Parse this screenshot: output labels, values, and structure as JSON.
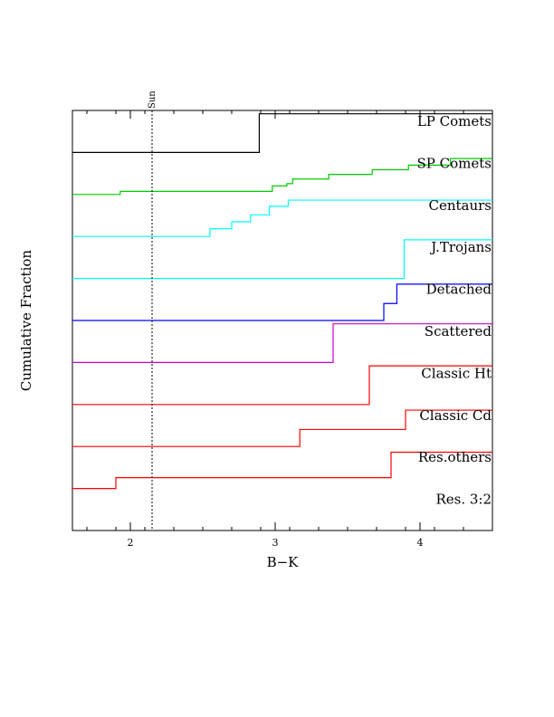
{
  "chart_data": {
    "type": "line",
    "subtype": "stacked-cumulative-step",
    "xlabel": "B−K",
    "ylabel": "Cumulative Fraction",
    "xlim": [
      1.6,
      4.5
    ],
    "xticks": [
      {
        "value": 2,
        "label": "2"
      },
      {
        "value": 3,
        "label": "3"
      },
      {
        "value": 4,
        "label": "4"
      }
    ],
    "grid": false,
    "reference_line": {
      "x": 2.15,
      "label": "Sun",
      "style": "dotted"
    },
    "series": [
      {
        "name": "LP Comets",
        "color": "#000000",
        "steps": [
          [
            1.6,
            0
          ],
          [
            2.89,
            0
          ],
          [
            2.89,
            1
          ],
          [
            4.5,
            1
          ]
        ]
      },
      {
        "name": "SP Comets",
        "color": "#00cc00",
        "steps": [
          [
            1.6,
            0
          ],
          [
            1.93,
            0
          ],
          [
            1.93,
            0.08
          ],
          [
            2.98,
            0.08
          ],
          [
            2.98,
            0.22
          ],
          [
            3.08,
            0.22
          ],
          [
            3.08,
            0.28
          ],
          [
            3.12,
            0.28
          ],
          [
            3.12,
            0.4
          ],
          [
            3.37,
            0.4
          ],
          [
            3.37,
            0.52
          ],
          [
            3.67,
            0.52
          ],
          [
            3.67,
            0.64
          ],
          [
            3.92,
            0.64
          ],
          [
            3.92,
            0.76
          ],
          [
            4.21,
            0.76
          ],
          [
            4.21,
            0.93
          ],
          [
            4.5,
            0.93
          ]
        ]
      },
      {
        "name": "Centaurs",
        "color": "#00ffff",
        "steps": [
          [
            1.6,
            0
          ],
          [
            2.55,
            0
          ],
          [
            2.55,
            0.2
          ],
          [
            2.7,
            0.2
          ],
          [
            2.7,
            0.38
          ],
          [
            2.83,
            0.38
          ],
          [
            2.83,
            0.56
          ],
          [
            2.96,
            0.56
          ],
          [
            2.96,
            0.78
          ],
          [
            3.09,
            0.78
          ],
          [
            3.09,
            0.94
          ],
          [
            4.5,
            0.94
          ]
        ]
      },
      {
        "name": "J.Trojans",
        "color": "#00ffff",
        "steps": [
          [
            1.6,
            0
          ],
          [
            3.89,
            0
          ],
          [
            3.89,
            1
          ],
          [
            4.5,
            1
          ]
        ]
      },
      {
        "name": "Detached",
        "color": "#0000ff",
        "steps": [
          [
            1.6,
            0
          ],
          [
            3.75,
            0
          ],
          [
            3.75,
            0.44
          ],
          [
            3.84,
            0.44
          ],
          [
            3.84,
            0.94
          ],
          [
            4.5,
            0.94
          ]
        ]
      },
      {
        "name": "Scattered",
        "color": "#cc00cc",
        "steps": [
          [
            1.6,
            0
          ],
          [
            3.4,
            0
          ],
          [
            3.4,
            1
          ],
          [
            4.5,
            1
          ]
        ]
      },
      {
        "name": "Classic Ht",
        "color": "#ff0000",
        "steps": [
          [
            1.6,
            0
          ],
          [
            3.65,
            0
          ],
          [
            3.65,
            1
          ],
          [
            4.5,
            1
          ]
        ]
      },
      {
        "name": "Classic Cd",
        "color": "#ff0000",
        "steps": [
          [
            1.6,
            0
          ],
          [
            3.17,
            0
          ],
          [
            3.17,
            0.44
          ],
          [
            3.9,
            0.44
          ],
          [
            3.9,
            0.94
          ],
          [
            4.5,
            0.94
          ]
        ]
      },
      {
        "name": "Res.others",
        "color": "#ff0000",
        "steps": [
          [
            1.6,
            0
          ],
          [
            1.9,
            0
          ],
          [
            1.9,
            0.28
          ],
          [
            3.8,
            0.28
          ],
          [
            3.8,
            0.94
          ],
          [
            4.5,
            0.94
          ]
        ]
      },
      {
        "name": "Res. 3:2",
        "color": "#ff0000",
        "steps": []
      }
    ]
  }
}
